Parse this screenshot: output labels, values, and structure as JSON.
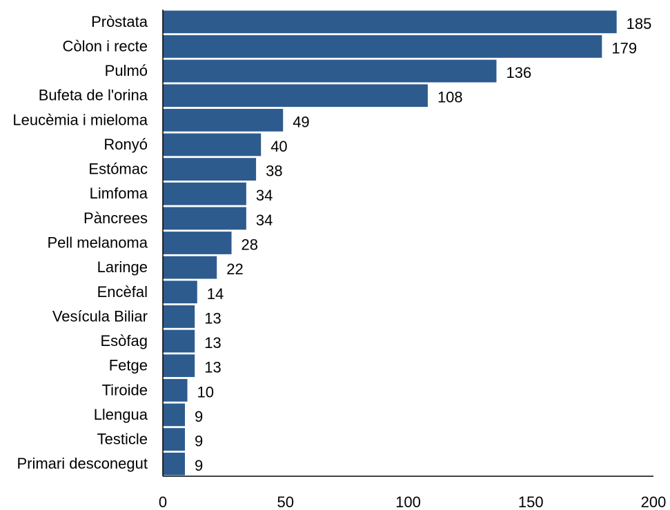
{
  "chart_data": {
    "type": "bar",
    "orientation": "horizontal",
    "categories": [
      "Pròstata",
      "Còlon i recte",
      "Pulmó",
      "Bufeta de l'orina",
      "Leucèmia i mieloma",
      "Ronyó",
      "Estómac",
      "Limfoma",
      "Pàncrees",
      "Pell melanoma",
      "Laringe",
      "Encèfal",
      "Vesícula Biliar",
      "Esòfag",
      "Fetge",
      "Tiroide",
      "Llengua",
      "Testicle",
      "Primari desconegut"
    ],
    "values": [
      185,
      179,
      136,
      108,
      49,
      40,
      38,
      34,
      34,
      28,
      22,
      14,
      13,
      13,
      13,
      10,
      9,
      9,
      9
    ],
    "xlim": [
      0,
      200
    ],
    "xticks": [
      0,
      50,
      100,
      150,
      200
    ],
    "xtick_labels": [
      "0",
      "50",
      "100",
      "150",
      "200"
    ],
    "bar_color": "#2e5b8e",
    "grid": false,
    "legend": "none",
    "title": "",
    "xlabel": "",
    "ylabel": ""
  }
}
